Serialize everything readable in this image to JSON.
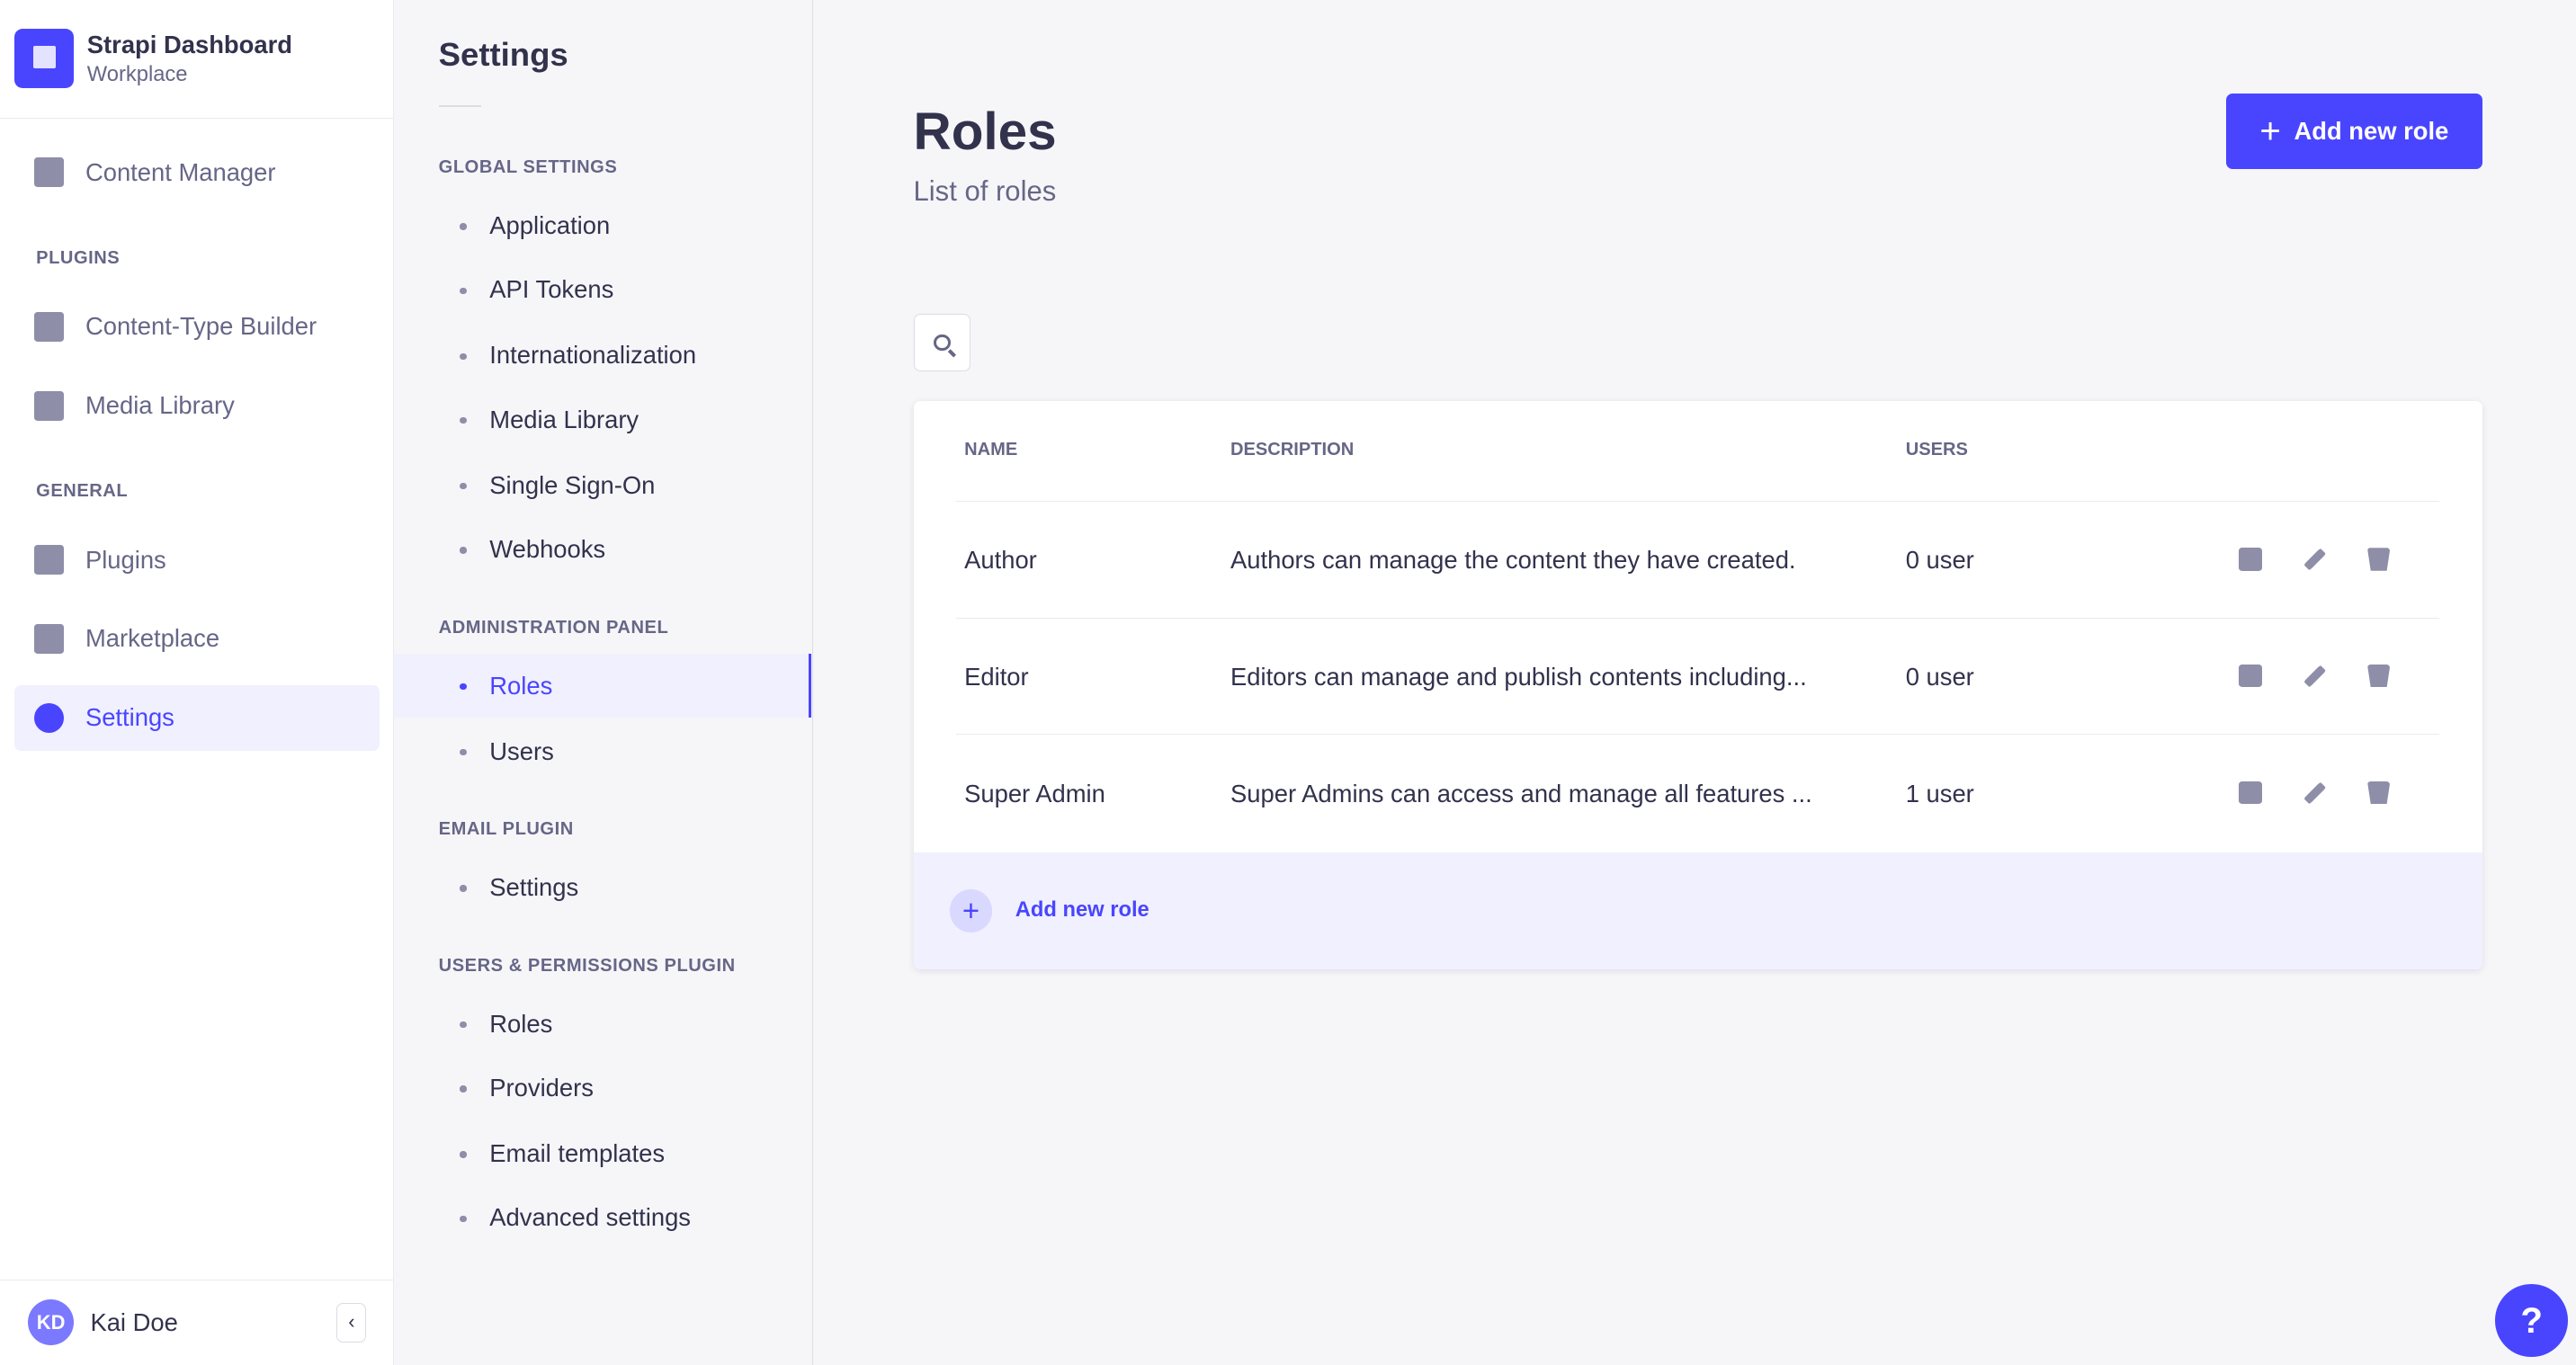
{
  "brand": {
    "title": "Strapi Dashboard",
    "subtitle": "Workplace"
  },
  "nav": {
    "content_manager": "Content Manager",
    "plugins_section": "PLUGINS",
    "ctb": "Content-Type Builder",
    "media": "Media Library",
    "general_section": "GENERAL",
    "plugins": "Plugins",
    "marketplace": "Marketplace",
    "settings": "Settings"
  },
  "user": {
    "initials": "KD",
    "name": "Kai Doe",
    "collapse": "‹"
  },
  "settings_nav": {
    "title": "Settings",
    "global": {
      "label": "GLOBAL SETTINGS",
      "items": [
        "Application",
        "API Tokens",
        "Internationalization",
        "Media Library",
        "Single Sign-On",
        "Webhooks"
      ]
    },
    "admin": {
      "label": "ADMINISTRATION PANEL",
      "items": [
        "Roles",
        "Users"
      ]
    },
    "email": {
      "label": "EMAIL PLUGIN",
      "items": [
        "Settings"
      ]
    },
    "up": {
      "label": "USERS & PERMISSIONS PLUGIN",
      "items": [
        "Roles",
        "Providers",
        "Email templates",
        "Advanced settings"
      ]
    }
  },
  "page": {
    "title": "Roles",
    "subtitle": "List of roles",
    "add_button": "Add new role",
    "plus": "+"
  },
  "table": {
    "headers": [
      "NAME",
      "DESCRIPTION",
      "USERS"
    ],
    "rows": [
      {
        "name": "Author",
        "description": "Authors can manage the content they have created.",
        "users": "0 user"
      },
      {
        "name": "Editor",
        "description": "Editors can manage and publish contents including...",
        "users": "0 user"
      },
      {
        "name": "Super Admin",
        "description": "Super Admins can access and manage all features ...",
        "users": "1 user"
      }
    ],
    "footer_add": "Add new role"
  },
  "help": "?",
  "colors": {
    "accent": "#4945ff",
    "accent_light": "#f0f0ff",
    "icon": "#8e8ea9"
  }
}
